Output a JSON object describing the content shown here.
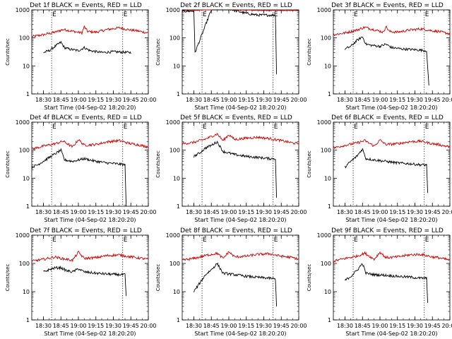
{
  "chart_data": [
    {
      "type": "line",
      "title": "Det 1f BLACK = Events, RED = LLD",
      "xlabel": "Start Time (04-Sep-02 18:20:20)",
      "ylabel": "Counts/sec",
      "yscale": "log",
      "ylim": [
        1,
        1000
      ],
      "yticks": [
        "1",
        "10",
        "100",
        "1000"
      ],
      "xlim": [
        "18:20",
        "20:00"
      ],
      "xticks": [
        "18:30",
        "18:45",
        "19:00",
        "19:15",
        "19:30",
        "19:45",
        "20:00"
      ],
      "markers": [
        {
          "label": "E",
          "time": "18:37"
        },
        {
          "label": "E",
          "time": "19:38"
        }
      ],
      "series": [
        {
          "color": "#cc0000",
          "shape": "flare",
          "t": [
            "18:20",
            "18:30",
            "18:40",
            "18:47",
            "19:03",
            "19:05",
            "19:08",
            "19:15",
            "19:25",
            "19:35",
            "19:45",
            "19:50",
            "20:00"
          ],
          "values": [
            110,
            130,
            160,
            200,
            150,
            250,
            170,
            160,
            200,
            230,
            190,
            180,
            150
          ]
        },
        {
          "color": "#000000",
          "shape": "drop",
          "t": [
            "18:30",
            "18:35",
            "18:40",
            "18:45",
            "18:48",
            "18:52",
            "19:00",
            "19:05",
            "19:10",
            "19:20",
            "19:30",
            "19:45"
          ],
          "values": [
            30,
            35,
            50,
            70,
            45,
            40,
            35,
            45,
            35,
            30,
            32,
            30
          ]
        }
      ]
    },
    {
      "type": "line",
      "title": "Det 2f BLACK = Events, RED = LLD",
      "xlabel": "Start Time (04-Sep-02 18:20:20)",
      "ylabel": "Counts/sec",
      "yscale": "log",
      "ylim": [
        1,
        1000
      ],
      "yticks": [
        "1",
        "10",
        "100",
        "1000"
      ],
      "xlim": [
        "18:20",
        "20:00"
      ],
      "xticks": [
        "18:30",
        "18:45",
        "19:00",
        "19:15",
        "19:30",
        "19:45",
        "20:00"
      ],
      "markers": [
        {
          "label": "E",
          "time": "18:37"
        },
        {
          "label": "E",
          "time": "19:38"
        }
      ],
      "series": [
        {
          "color": "#cc0000",
          "shape": "flat",
          "t": [
            "18:20",
            "18:30",
            "18:45",
            "18:55",
            "19:05",
            "19:30",
            "19:45",
            "20:00"
          ],
          "values": [
            950,
            950,
            1050,
            1200,
            1000,
            950,
            950,
            950
          ]
        },
        {
          "color": "#000000",
          "shape": "step",
          "t": [
            "18:20",
            "18:30",
            "18:31",
            "18:45",
            "18:55",
            "19:05",
            "19:15",
            "19:25",
            "19:40",
            "19:41"
          ],
          "values": [
            900,
            900,
            30,
            1000,
            1300,
            950,
            750,
            650,
            650,
            5
          ]
        }
      ]
    },
    {
      "type": "line",
      "title": "Det 3f BLACK = Events, RED = LLD",
      "xlabel": "Start Time (04-Sep-02 18:20:20)",
      "ylabel": "Counts/sec",
      "yscale": "log",
      "ylim": [
        1,
        1000
      ],
      "yticks": [
        "1",
        "10",
        "100",
        "1000"
      ],
      "xlim": [
        "18:20",
        "20:00"
      ],
      "xticks": [
        "18:30",
        "18:45",
        "19:00",
        "19:15",
        "19:30",
        "19:45",
        "20:00"
      ],
      "markers": [
        {
          "label": "E",
          "time": "18:37"
        },
        {
          "label": "E",
          "time": "19:38"
        }
      ],
      "series": [
        {
          "color": "#cc0000",
          "shape": "flare",
          "t": [
            "18:20",
            "18:30",
            "18:40",
            "18:47",
            "19:03",
            "19:05",
            "19:08",
            "19:15",
            "19:25",
            "19:35",
            "19:45",
            "19:50",
            "20:00"
          ],
          "values": [
            130,
            150,
            190,
            240,
            160,
            260,
            170,
            160,
            190,
            210,
            180,
            170,
            140
          ]
        },
        {
          "color": "#000000",
          "shape": "drop",
          "t": [
            "18:30",
            "18:35",
            "18:40",
            "18:45",
            "18:48",
            "18:52",
            "19:00",
            "19:05",
            "19:10",
            "19:20",
            "19:30",
            "19:40",
            "19:42"
          ],
          "values": [
            40,
            50,
            80,
            110,
            60,
            55,
            50,
            60,
            45,
            40,
            38,
            35,
            2
          ]
        }
      ]
    },
    {
      "type": "line",
      "title": "Det 4f BLACK = Events, RED = LLD",
      "xlabel": "Start Time (04-Sep-02 18:20:20)",
      "ylabel": "Counts/sec",
      "yscale": "log",
      "ylim": [
        1,
        1000
      ],
      "yticks": [
        "1",
        "10",
        "100",
        "1000"
      ],
      "xlim": [
        "18:20",
        "20:00"
      ],
      "xticks": [
        "18:30",
        "18:45",
        "19:00",
        "19:15",
        "19:30",
        "19:45",
        "20:00"
      ],
      "markers": [
        {
          "label": "E",
          "time": "18:37"
        },
        {
          "label": "E",
          "time": "19:38"
        }
      ],
      "series": [
        {
          "color": "#cc0000",
          "shape": "flare",
          "t": [
            "18:20",
            "18:30",
            "18:40",
            "18:47",
            "18:55",
            "19:00",
            "19:05",
            "19:15",
            "19:25",
            "19:35",
            "19:45",
            "19:50",
            "20:00"
          ],
          "values": [
            110,
            140,
            170,
            210,
            130,
            240,
            150,
            160,
            200,
            220,
            170,
            160,
            130
          ]
        },
        {
          "color": "#000000",
          "shape": "drop",
          "t": [
            "18:20",
            "18:25",
            "18:35",
            "18:45",
            "18:48",
            "18:55",
            "19:05",
            "19:15",
            "19:25",
            "19:35",
            "19:40",
            "19:41"
          ],
          "values": [
            25,
            30,
            55,
            100,
            45,
            40,
            50,
            40,
            35,
            32,
            30,
            1
          ]
        }
      ]
    },
    {
      "type": "line",
      "title": "Det 5f BLACK = Events, RED = LLD",
      "xlabel": "Start Time (04-Sep-02 18:20:20)",
      "ylabel": "Counts/sec",
      "yscale": "log",
      "ylim": [
        1,
        1000
      ],
      "yticks": [
        "1",
        "10",
        "100",
        "1000"
      ],
      "xlim": [
        "18:20",
        "20:00"
      ],
      "xticks": [
        "18:30",
        "18:45",
        "19:00",
        "19:15",
        "19:30",
        "19:45",
        "20:00"
      ],
      "markers": [
        {
          "label": "E",
          "time": "18:37"
        },
        {
          "label": "E",
          "time": "19:38"
        }
      ],
      "series": [
        {
          "color": "#cc0000",
          "shape": "flare",
          "t": [
            "18:20",
            "18:30",
            "18:40",
            "18:50",
            "18:55",
            "19:00",
            "19:05",
            "19:15",
            "19:25",
            "19:35",
            "19:45",
            "19:55",
            "20:00"
          ],
          "values": [
            170,
            190,
            250,
            380,
            220,
            360,
            240,
            270,
            290,
            260,
            220,
            180,
            170
          ]
        },
        {
          "color": "#000000",
          "shape": "drop",
          "t": [
            "18:30",
            "18:35",
            "18:40",
            "18:45",
            "18:50",
            "18:55",
            "19:05",
            "19:15",
            "19:25",
            "19:35",
            "19:40",
            "19:41"
          ],
          "values": [
            60,
            80,
            120,
            150,
            200,
            90,
            70,
            60,
            55,
            50,
            50,
            2
          ]
        }
      ]
    },
    {
      "type": "line",
      "title": "Det 6f BLACK = Events, RED = LLD",
      "xlabel": "Start Time (04-Sep-02 18:20:20)",
      "ylabel": "Counts/sec",
      "yscale": "log",
      "ylim": [
        1,
        1000
      ],
      "yticks": [
        "1",
        "10",
        "100",
        "1000"
      ],
      "xlim": [
        "18:20",
        "20:00"
      ],
      "xticks": [
        "18:30",
        "18:45",
        "19:00",
        "19:15",
        "19:30",
        "19:45",
        "20:00"
      ],
      "markers": [
        {
          "label": "E",
          "time": "18:37"
        },
        {
          "label": "E",
          "time": "19:38"
        }
      ],
      "series": [
        {
          "color": "#cc0000",
          "shape": "flare",
          "t": [
            "18:20",
            "18:30",
            "18:40",
            "18:47",
            "18:55",
            "19:00",
            "19:05",
            "19:15",
            "19:25",
            "19:35",
            "19:45",
            "19:50",
            "20:00"
          ],
          "values": [
            120,
            150,
            180,
            220,
            140,
            230,
            160,
            170,
            200,
            210,
            170,
            160,
            130
          ]
        },
        {
          "color": "#000000",
          "shape": "drop",
          "t": [
            "18:30",
            "18:35",
            "18:40",
            "18:45",
            "18:48",
            "18:55",
            "19:05",
            "19:15",
            "19:25",
            "19:35",
            "19:40",
            "19:41"
          ],
          "values": [
            25,
            40,
            60,
            110,
            50,
            45,
            40,
            35,
            33,
            30,
            30,
            3
          ]
        }
      ]
    },
    {
      "type": "line",
      "title": "Det 7f BLACK = Events, RED = LLD",
      "xlabel": "Start Time (04-Sep-02 18:20:20)",
      "ylabel": "Counts/sec",
      "yscale": "log",
      "ylim": [
        1,
        1000
      ],
      "yticks": [
        "1",
        "10",
        "100",
        "1000"
      ],
      "xlim": [
        "18:20",
        "20:00"
      ],
      "xticks": [
        "18:30",
        "18:45",
        "19:00",
        "19:15",
        "19:30",
        "19:45",
        "20:00"
      ],
      "markers": [
        {
          "label": "E",
          "time": "18:37"
        },
        {
          "label": "E",
          "time": "19:38"
        }
      ],
      "series": [
        {
          "color": "#cc0000",
          "shape": "flare",
          "t": [
            "18:20",
            "18:30",
            "18:40",
            "18:45",
            "18:55",
            "19:00",
            "19:05",
            "19:15",
            "19:25",
            "19:35",
            "19:45",
            "19:50",
            "20:00"
          ],
          "values": [
            120,
            140,
            170,
            150,
            130,
            250,
            150,
            160,
            190,
            200,
            170,
            160,
            140
          ]
        },
        {
          "color": "#000000",
          "shape": "drop",
          "t": [
            "18:30",
            "18:35",
            "18:40",
            "18:45",
            "18:50",
            "18:55",
            "19:00",
            "19:05",
            "19:15",
            "19:25",
            "19:35",
            "19:40",
            "19:41"
          ],
          "values": [
            50,
            60,
            70,
            70,
            55,
            50,
            65,
            50,
            45,
            42,
            40,
            40,
            7
          ]
        }
      ]
    },
    {
      "type": "line",
      "title": "Det 8f BLACK = Events, RED = LLD",
      "xlabel": "Start Time (04-Sep-02 18:20:20)",
      "ylabel": "Counts/sec",
      "yscale": "log",
      "ylim": [
        1,
        1000
      ],
      "yticks": [
        "1",
        "10",
        "100",
        "1000"
      ],
      "xlim": [
        "18:20",
        "20:00"
      ],
      "xticks": [
        "18:30",
        "18:45",
        "19:00",
        "19:15",
        "19:30",
        "19:45",
        "20:00"
      ],
      "markers": [
        {
          "label": "E",
          "time": "18:37"
        },
        {
          "label": "E",
          "time": "19:38"
        }
      ],
      "series": [
        {
          "color": "#cc0000",
          "shape": "flare",
          "t": [
            "18:20",
            "18:30",
            "18:40",
            "18:50",
            "18:55",
            "19:00",
            "19:05",
            "19:15",
            "19:25",
            "19:35",
            "19:45",
            "19:55",
            "20:00"
          ],
          "values": [
            130,
            150,
            190,
            230,
            150,
            260,
            170,
            180,
            210,
            220,
            180,
            160,
            140
          ]
        },
        {
          "color": "#000000",
          "shape": "drop",
          "t": [
            "18:30",
            "18:35",
            "18:40",
            "18:45",
            "18:50",
            "18:55",
            "19:05",
            "19:15",
            "19:25",
            "19:35",
            "19:40",
            "19:41"
          ],
          "values": [
            10,
            20,
            40,
            60,
            100,
            45,
            40,
            35,
            32,
            30,
            28,
            3
          ]
        }
      ]
    },
    {
      "type": "line",
      "title": "Det 9f BLACK = Events, RED = LLD",
      "xlabel": "Start Time (04-Sep-02 18:20:20)",
      "ylabel": "Counts/sec",
      "yscale": "log",
      "ylim": [
        1,
        1000
      ],
      "yticks": [
        "1",
        "10",
        "100",
        "1000"
      ],
      "xlim": [
        "18:20",
        "20:00"
      ],
      "xticks": [
        "18:30",
        "18:45",
        "19:00",
        "19:15",
        "19:30",
        "19:45",
        "20:00"
      ],
      "markers": [
        {
          "label": "E",
          "time": "18:37"
        },
        {
          "label": "E",
          "time": "19:38"
        }
      ],
      "series": [
        {
          "color": "#cc0000",
          "shape": "flare",
          "t": [
            "18:20",
            "18:30",
            "18:40",
            "18:47",
            "18:55",
            "19:00",
            "19:05",
            "19:15",
            "19:25",
            "19:35",
            "19:45",
            "19:50",
            "20:00"
          ],
          "values": [
            120,
            150,
            180,
            230,
            140,
            250,
            160,
            170,
            200,
            210,
            170,
            160,
            130
          ]
        },
        {
          "color": "#000000",
          "shape": "drop",
          "t": [
            "18:30",
            "18:35",
            "18:40",
            "18:45",
            "18:48",
            "18:55",
            "19:05",
            "19:15",
            "19:25",
            "19:35",
            "19:40",
            "19:41"
          ],
          "values": [
            25,
            35,
            55,
            100,
            45,
            40,
            38,
            35,
            33,
            30,
            30,
            4
          ]
        }
      ]
    }
  ]
}
